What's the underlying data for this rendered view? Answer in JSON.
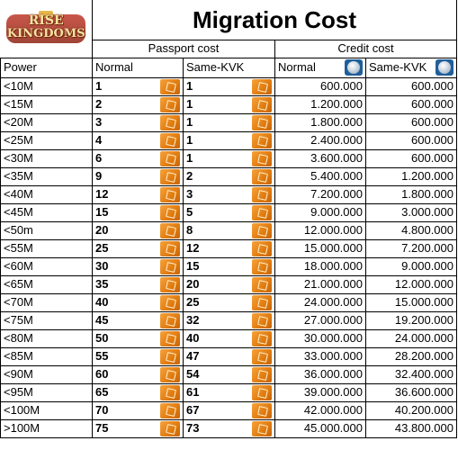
{
  "logo": {
    "line1": "RISE",
    "line2": "KINGDOMS"
  },
  "title": "Migration Cost",
  "groups": {
    "passport": "Passport cost",
    "credit": "Credit cost"
  },
  "headers": {
    "power": "Power",
    "normal": "Normal",
    "same_kvk": "Same-KVK",
    "credit_normal": "Normal",
    "credit_same_kvk": "Same-KVK"
  },
  "icons": {
    "passport": "passport-icon",
    "credit": "credit-coin-icon"
  },
  "rows": [
    {
      "power": "<10M",
      "normal": "1",
      "same_kvk": "1",
      "credit_normal": "600.000",
      "credit_same_kvk": "600.000"
    },
    {
      "power": "<15M",
      "normal": "2",
      "same_kvk": "1",
      "credit_normal": "1.200.000",
      "credit_same_kvk": "600.000"
    },
    {
      "power": "<20M",
      "normal": "3",
      "same_kvk": "1",
      "credit_normal": "1.800.000",
      "credit_same_kvk": "600.000"
    },
    {
      "power": "<25M",
      "normal": "4",
      "same_kvk": "1",
      "credit_normal": "2.400.000",
      "credit_same_kvk": "600.000"
    },
    {
      "power": "<30M",
      "normal": "6",
      "same_kvk": "1",
      "credit_normal": "3.600.000",
      "credit_same_kvk": "600.000"
    },
    {
      "power": "<35M",
      "normal": "9",
      "same_kvk": "2",
      "credit_normal": "5.400.000",
      "credit_same_kvk": "1.200.000"
    },
    {
      "power": "<40M",
      "normal": "12",
      "same_kvk": "3",
      "credit_normal": "7.200.000",
      "credit_same_kvk": "1.800.000"
    },
    {
      "power": "<45M",
      "normal": "15",
      "same_kvk": "5",
      "credit_normal": "9.000.000",
      "credit_same_kvk": "3.000.000"
    },
    {
      "power": "<50m",
      "normal": "20",
      "same_kvk": "8",
      "credit_normal": "12.000.000",
      "credit_same_kvk": "4.800.000"
    },
    {
      "power": "<55M",
      "normal": "25",
      "same_kvk": "12",
      "credit_normal": "15.000.000",
      "credit_same_kvk": "7.200.000"
    },
    {
      "power": "<60M",
      "normal": "30",
      "same_kvk": "15",
      "credit_normal": "18.000.000",
      "credit_same_kvk": "9.000.000"
    },
    {
      "power": "<65M",
      "normal": "35",
      "same_kvk": "20",
      "credit_normal": "21.000.000",
      "credit_same_kvk": "12.000.000"
    },
    {
      "power": "<70M",
      "normal": "40",
      "same_kvk": "25",
      "credit_normal": "24.000.000",
      "credit_same_kvk": "15.000.000"
    },
    {
      "power": "<75M",
      "normal": "45",
      "same_kvk": "32",
      "credit_normal": "27.000.000",
      "credit_same_kvk": "19.200.000"
    },
    {
      "power": "<80M",
      "normal": "50",
      "same_kvk": "40",
      "credit_normal": "30.000.000",
      "credit_same_kvk": "24.000.000"
    },
    {
      "power": "<85M",
      "normal": "55",
      "same_kvk": "47",
      "credit_normal": "33.000.000",
      "credit_same_kvk": "28.200.000"
    },
    {
      "power": "<90M",
      "normal": "60",
      "same_kvk": "54",
      "credit_normal": "36.000.000",
      "credit_same_kvk": "32.400.000"
    },
    {
      "power": "<95M",
      "normal": "65",
      "same_kvk": "61",
      "credit_normal": "39.000.000",
      "credit_same_kvk": "36.600.000"
    },
    {
      "power": "<100M",
      "normal": "70",
      "same_kvk": "67",
      "credit_normal": "42.000.000",
      "credit_same_kvk": "40.200.000"
    },
    {
      "power": ">100M",
      "normal": "75",
      "same_kvk": "73",
      "credit_normal": "45.000.000",
      "credit_same_kvk": "43.800.000"
    }
  ]
}
